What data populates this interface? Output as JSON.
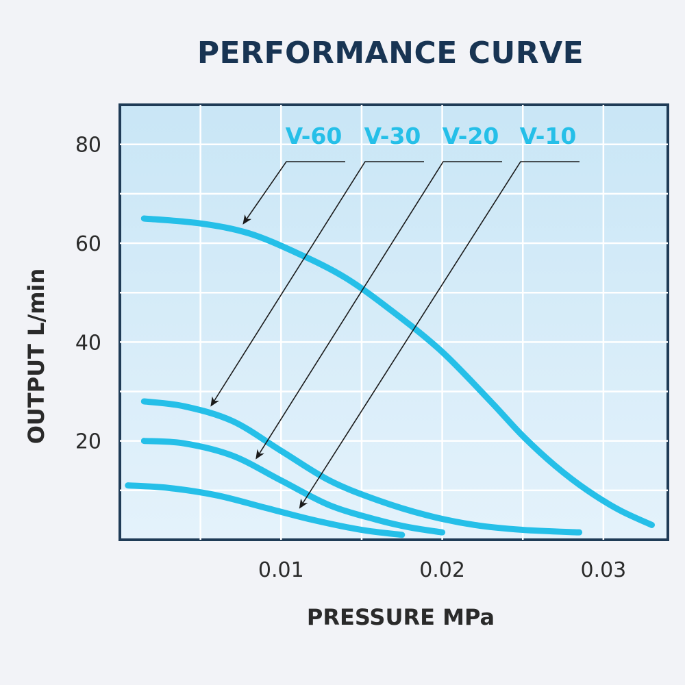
{
  "chart_data": {
    "type": "line",
    "title": "PERFORMANCE CURVE",
    "xlabel": "PRESSURE MPa",
    "ylabel": "OUTPUT L/min",
    "xlim": [
      0,
      0.034
    ],
    "ylim": [
      0,
      88
    ],
    "x_ticks": [
      "0.01",
      "0.02",
      "0.03"
    ],
    "x_tick_values": [
      0.01,
      0.02,
      0.03
    ],
    "y_ticks": [
      "20",
      "40",
      "60",
      "80"
    ],
    "y_tick_values": [
      20,
      40,
      60,
      80
    ],
    "grid": true,
    "series": [
      {
        "name": "V-60",
        "x": [
          0.0015,
          0.005,
          0.008,
          0.011,
          0.014,
          0.017,
          0.02,
          0.023,
          0.025,
          0.027,
          0.029,
          0.031,
          0.033
        ],
        "y": [
          65,
          64,
          62,
          58,
          53,
          46,
          38,
          28,
          21,
          15,
          10,
          6,
          3
        ]
      },
      {
        "name": "V-30",
        "x": [
          0.0015,
          0.004,
          0.007,
          0.01,
          0.013,
          0.016,
          0.019,
          0.022,
          0.025,
          0.0285
        ],
        "y": [
          28,
          27,
          24,
          18,
          12,
          8,
          5,
          3,
          2,
          1.5
        ]
      },
      {
        "name": "V-20",
        "x": [
          0.0015,
          0.004,
          0.007,
          0.01,
          0.013,
          0.016,
          0.018,
          0.02
        ],
        "y": [
          20,
          19.5,
          17,
          12,
          7,
          4,
          2.5,
          1.5
        ]
      },
      {
        "name": "V-10",
        "x": [
          0.0005,
          0.003,
          0.006,
          0.009,
          0.012,
          0.015,
          0.0175
        ],
        "y": [
          11,
          10.5,
          9,
          6.5,
          4,
          2,
          1
        ]
      }
    ],
    "line_color": "#25bfe8"
  }
}
